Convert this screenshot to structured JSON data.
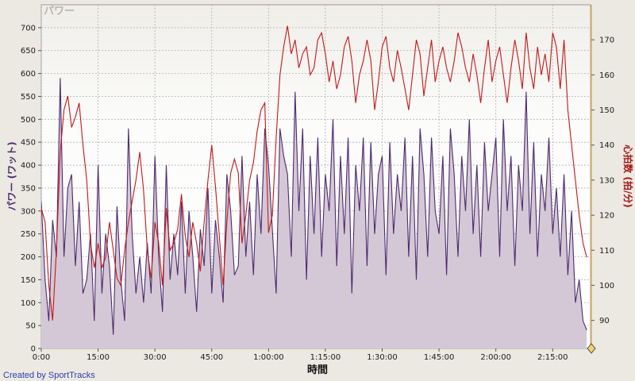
{
  "chart_data": {
    "type": "area",
    "title": "パワー",
    "xlabel": "時間",
    "ylabel_left": "パワー (ワット)",
    "ylabel_right": "心拍数 (拍/分)",
    "x_unit": "minutes",
    "xlim": [
      0,
      145
    ],
    "ylim_left": [
      0,
      750
    ],
    "ylim_right": [
      82,
      180
    ],
    "x_ticks": [
      {
        "value": 0,
        "label": "0:00"
      },
      {
        "value": 15,
        "label": "15:00"
      },
      {
        "value": 30,
        "label": "30:00"
      },
      {
        "value": 45,
        "label": "45:00"
      },
      {
        "value": 60,
        "label": "1:00:00"
      },
      {
        "value": 75,
        "label": "1:15:00"
      },
      {
        "value": 90,
        "label": "1:30:00"
      },
      {
        "value": 105,
        "label": "1:45:00"
      },
      {
        "value": 120,
        "label": "2:00:00"
      },
      {
        "value": 135,
        "label": "2:15:00"
      }
    ],
    "y_ticks_left": [
      {
        "value": 0,
        "label": "0"
      },
      {
        "value": 50,
        "label": "50"
      },
      {
        "value": 100,
        "label": "100"
      },
      {
        "value": 150,
        "label": "150"
      },
      {
        "value": 200,
        "label": "200"
      },
      {
        "value": 250,
        "label": "250"
      },
      {
        "value": 300,
        "label": "300"
      },
      {
        "value": 350,
        "label": "350"
      },
      {
        "value": 400,
        "label": "400"
      },
      {
        "value": 450,
        "label": "450"
      },
      {
        "value": 500,
        "label": "500"
      },
      {
        "value": 550,
        "label": "550"
      },
      {
        "value": 600,
        "label": "600"
      },
      {
        "value": 650,
        "label": "650"
      },
      {
        "value": 700,
        "label": "700"
      }
    ],
    "y_ticks_right": [
      {
        "value": 90,
        "label": "90"
      },
      {
        "value": 100,
        "label": "100"
      },
      {
        "value": 110,
        "label": "110"
      },
      {
        "value": 120,
        "label": "120"
      },
      {
        "value": 130,
        "label": "130"
      },
      {
        "value": 140,
        "label": "140"
      },
      {
        "value": 150,
        "label": "150"
      },
      {
        "value": 160,
        "label": "160"
      },
      {
        "value": 170,
        "label": "170"
      }
    ],
    "grid": true,
    "colors": {
      "power_line": "#4d2a6e",
      "power_fill": "#d5c8d6",
      "heart_rate": "#c41818",
      "plot_bg": "#ffffff",
      "plot_bg_top": "#f1f0ec",
      "right_axis": "#e0b060"
    },
    "series": [
      {
        "axis": "left",
        "x": [
          0,
          1,
          2,
          3,
          4,
          5,
          6,
          7,
          8,
          9,
          10,
          11,
          12,
          13,
          14,
          15,
          16,
          17,
          18,
          19,
          20,
          21,
          22,
          23,
          24,
          25,
          26,
          27,
          28,
          29,
          30,
          31,
          32,
          33,
          34,
          35,
          36,
          37,
          38,
          39,
          40,
          41,
          42,
          43,
          44,
          45,
          46,
          47,
          48,
          49,
          50,
          51,
          52,
          53,
          54,
          55,
          56,
          57,
          58,
          59,
          60,
          61,
          62,
          63,
          64,
          65,
          66,
          67,
          68,
          69,
          70,
          71,
          72,
          73,
          74,
          75,
          76,
          77,
          78,
          79,
          80,
          81,
          82,
          83,
          84,
          85,
          86,
          87,
          88,
          89,
          90,
          91,
          92,
          93,
          94,
          95,
          96,
          97,
          98,
          99,
          100,
          101,
          102,
          103,
          104,
          105,
          106,
          107,
          108,
          109,
          110,
          111,
          112,
          113,
          114,
          115,
          116,
          117,
          118,
          119,
          120,
          121,
          122,
          123,
          124,
          125,
          126,
          127,
          128,
          129,
          130,
          131,
          132,
          133,
          134,
          135,
          136,
          137,
          138,
          139,
          140,
          141,
          142,
          143,
          144
        ],
        "values": [
          320,
          150,
          60,
          280,
          200,
          590,
          200,
          350,
          380,
          180,
          320,
          120,
          150,
          250,
          60,
          400,
          120,
          250,
          180,
          30,
          310,
          150,
          60,
          480,
          250,
          120,
          200,
          100,
          230,
          120,
          420,
          200,
          80,
          400,
          150,
          250,
          160,
          320,
          120,
          300,
          200,
          80,
          260,
          180,
          350,
          120,
          280,
          200,
          100,
          380,
          300,
          160,
          180,
          420,
          200,
          320,
          160,
          380,
          250,
          480,
          400,
          260,
          120,
          480,
          420,
          380,
          200,
          560,
          300,
          480,
          150,
          420,
          250,
          460,
          200,
          380,
          300,
          500,
          180,
          420,
          250,
          460,
          120,
          400,
          300,
          460,
          180,
          450,
          250,
          380,
          420,
          160,
          450,
          250,
          380,
          300,
          460,
          200,
          420,
          150,
          480,
          380,
          200,
          460,
          300,
          250,
          420,
          160,
          480,
          380,
          200,
          420,
          300,
          500,
          250,
          400,
          200,
          450,
          300,
          380,
          460,
          200,
          500,
          300,
          420,
          180,
          400,
          300,
          560,
          250,
          450,
          200,
          380,
          300,
          460,
          250,
          350,
          200,
          380,
          160,
          300,
          100,
          150,
          60,
          40
        ]
      },
      {
        "axis": "right",
        "x": [
          0,
          1,
          2,
          3,
          4,
          5,
          6,
          7,
          8,
          9,
          10,
          11,
          12,
          13,
          14,
          15,
          16,
          17,
          18,
          19,
          20,
          21,
          22,
          23,
          24,
          25,
          26,
          27,
          28,
          29,
          30,
          31,
          32,
          33,
          34,
          35,
          36,
          37,
          38,
          39,
          40,
          41,
          42,
          43,
          44,
          45,
          46,
          47,
          48,
          49,
          50,
          51,
          52,
          53,
          54,
          55,
          56,
          57,
          58,
          59,
          60,
          61,
          62,
          63,
          64,
          65,
          66,
          67,
          68,
          69,
          70,
          71,
          72,
          73,
          74,
          75,
          76,
          77,
          78,
          79,
          80,
          81,
          82,
          83,
          84,
          85,
          86,
          87,
          88,
          89,
          90,
          91,
          92,
          93,
          94,
          95,
          96,
          97,
          98,
          99,
          100,
          101,
          102,
          103,
          104,
          105,
          106,
          107,
          108,
          109,
          110,
          111,
          112,
          113,
          114,
          115,
          116,
          117,
          118,
          119,
          120,
          121,
          122,
          123,
          124,
          125,
          126,
          127,
          128,
          129,
          130,
          131,
          132,
          133,
          134,
          135,
          136,
          137,
          138,
          139,
          140,
          141,
          142,
          143,
          144
        ],
        "values": [
          122,
          118,
          100,
          90,
          110,
          138,
          150,
          154,
          145,
          148,
          152,
          140,
          130,
          112,
          105,
          112,
          105,
          108,
          118,
          110,
          102,
          100,
          110,
          118,
          124,
          130,
          138,
          127,
          110,
          102,
          118,
          112,
          100,
          122,
          110,
          112,
          116,
          126,
          114,
          108,
          118,
          112,
          104,
          118,
          130,
          140,
          128,
          114,
          100,
          118,
          132,
          136,
          132,
          112,
          120,
          130,
          135,
          144,
          150,
          152,
          115,
          120,
          142,
          160,
          168,
          174,
          166,
          170,
          162,
          166,
          168,
          160,
          162,
          170,
          172,
          166,
          158,
          164,
          156,
          160,
          168,
          171,
          164,
          152,
          160,
          164,
          170,
          164,
          150,
          158,
          168,
          171,
          162,
          158,
          167,
          162,
          156,
          150,
          160,
          170,
          166,
          154,
          162,
          170,
          158,
          164,
          168,
          162,
          158,
          164,
          172,
          168,
          162,
          158,
          166,
          160,
          152,
          162,
          170,
          158,
          164,
          168,
          160,
          152,
          162,
          170,
          164,
          156,
          172,
          162,
          156,
          168,
          160,
          166,
          158,
          172,
          168,
          156,
          170,
          150,
          140,
          130,
          120,
          112,
          108
        ]
      }
    ]
  },
  "footer": {
    "credit": "Created by SportTracks",
    "marker_icon": "diamond-marker-icon"
  }
}
